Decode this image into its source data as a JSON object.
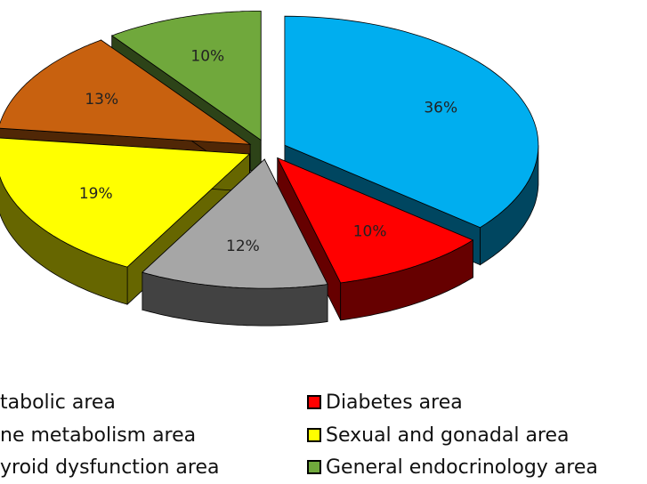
{
  "chart_data": {
    "type": "pie",
    "categories": [
      "tabolic area",
      "Diabetes area",
      "ne metabolism area",
      "Sexual and gonadal area",
      "yroid dysfunction area",
      "General endocrinology area"
    ],
    "values": [
      36,
      10,
      12,
      19,
      13,
      10
    ],
    "value_labels": [
      "36%",
      "10%",
      "12%",
      "19%",
      "13%",
      "10%"
    ],
    "colors": [
      "#00aeef",
      "#ff0000",
      "#a6a6a6",
      "#ffff00",
      "#c8610f",
      "#70a83c"
    ]
  }
}
